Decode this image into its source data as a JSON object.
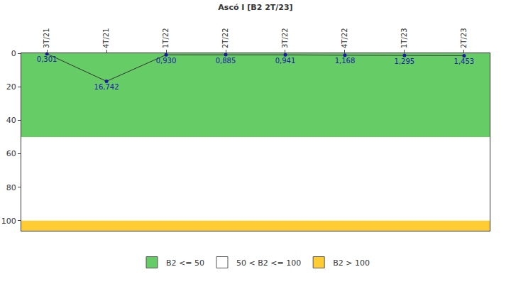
{
  "chart_data": {
    "type": "line",
    "title": "Ascó I [B2 2T/23]",
    "categories": [
      "3T/21",
      "4T/21",
      "1T/22",
      "2T/22",
      "3T/22",
      "4T/22",
      "1T/23",
      "2T/23"
    ],
    "series": [
      {
        "name": "B2",
        "color": "#333333",
        "marker": "circle",
        "values": [
          0.301,
          16.742,
          0.93,
          0.885,
          0.941,
          1.168,
          1.295,
          1.453
        ],
        "value_labels": [
          "0,301",
          "16,742",
          "0,930",
          "0,885",
          "0,941",
          "1,168",
          "1,295",
          "1,453"
        ]
      }
    ],
    "bands": [
      {
        "name": "B2 <= 50",
        "color": "#66cc66",
        "from": 0,
        "to": 50
      },
      {
        "name": "50 < B2 <= 100",
        "color": "#ffffff",
        "from": 50,
        "to": 100
      },
      {
        "name": "B2 > 100",
        "color": "#ffcc33",
        "from": 100,
        "to": 106
      }
    ],
    "ylim": [
      0,
      106
    ],
    "yticks": [
      0,
      20,
      40,
      60,
      80,
      100
    ],
    "data_labels": true,
    "grid": false,
    "legend": "bottom"
  }
}
